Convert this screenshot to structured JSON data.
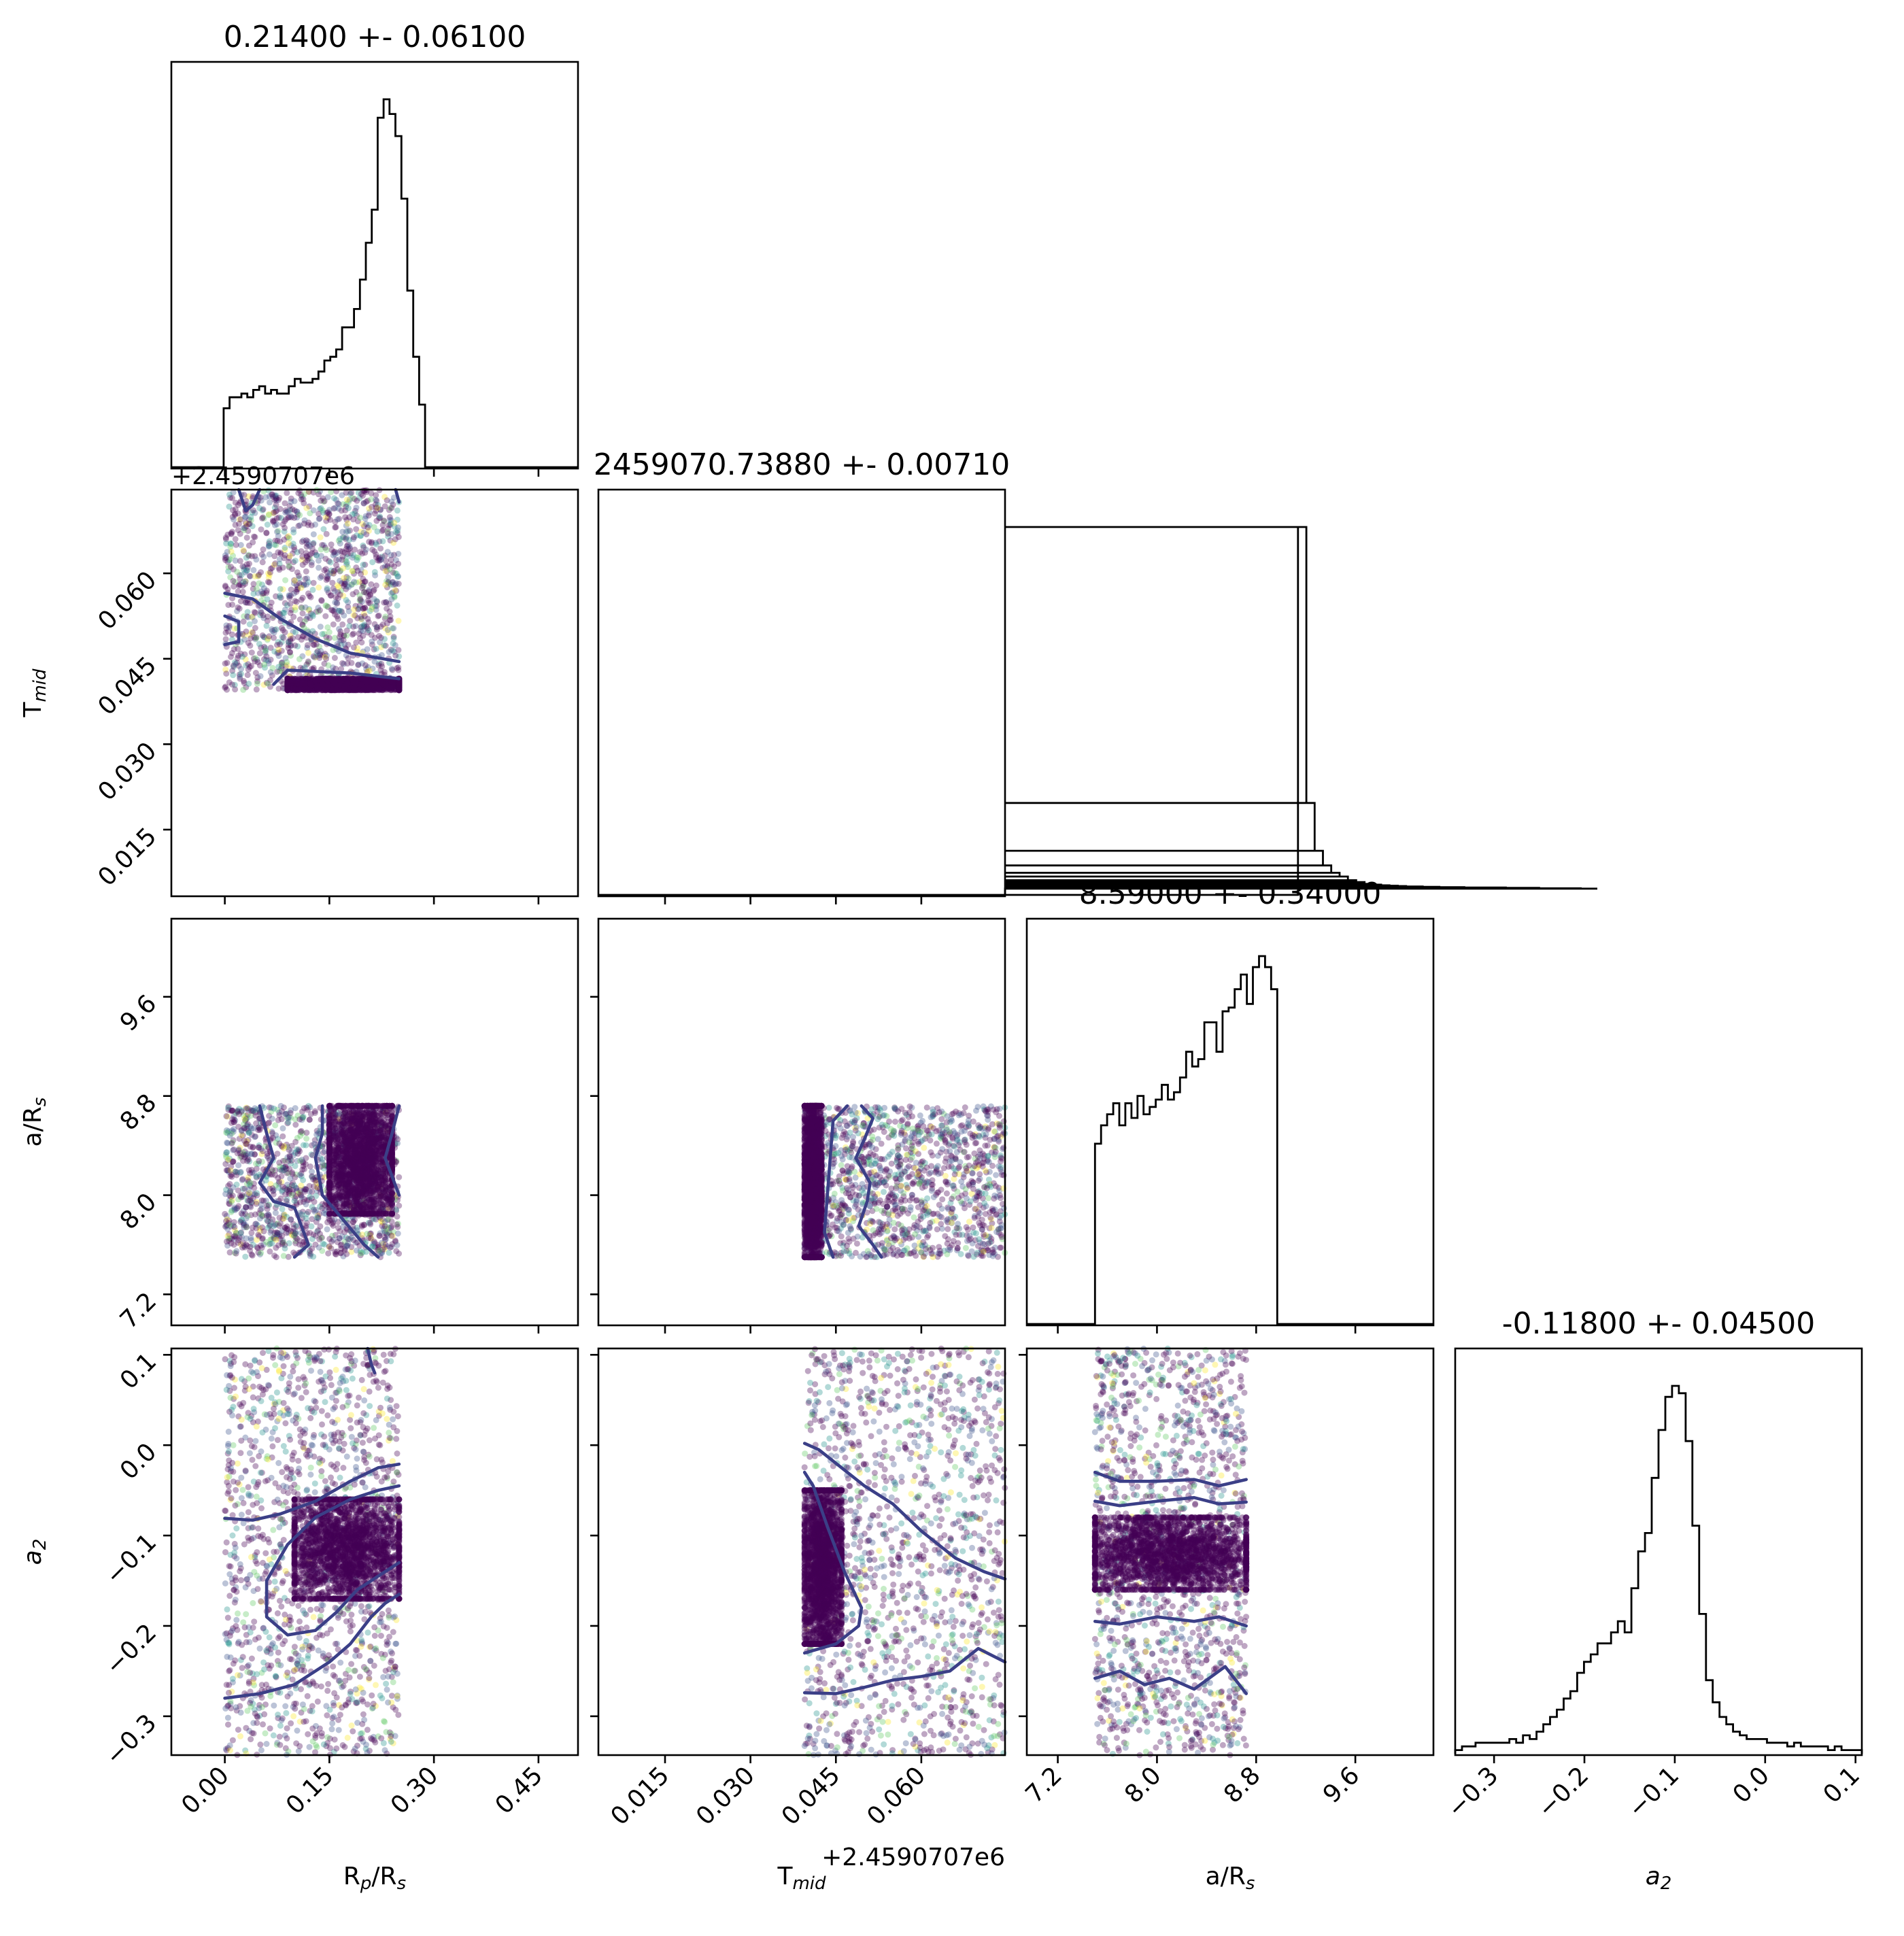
{
  "chart_data": {
    "type": "corner",
    "colormap": [
      "#440154",
      "#3b528b",
      "#21918c",
      "#5ec962",
      "#fde725"
    ],
    "contour_color": "#3b3f87",
    "parameters": [
      {
        "key": "rp",
        "label_main": "R",
        "label_sub": "p",
        "label_tail": "/R",
        "label_tail_sub": "s",
        "range": [
          -0.0767,
          0.5067
        ],
        "ticks": [
          0.0,
          0.15,
          0.3,
          0.45
        ],
        "tick_labels": [
          "0.00",
          "0.15",
          "0.30",
          "0.45"
        ],
        "offset": "",
        "title": "0.21400 +- 0.06100"
      },
      {
        "key": "tmid",
        "label_main": "T",
        "label_sub": "mid",
        "label_tail": "",
        "label_tail_sub": "",
        "range": [
          0.0033,
          0.0747
        ],
        "ticks": [
          0.015,
          0.03,
          0.045,
          0.06
        ],
        "tick_labels": [
          "0.015",
          "0.030",
          "0.045",
          "0.060"
        ],
        "offset": "+2.4590707e6",
        "title": "2459070.73880 +- 0.00710"
      },
      {
        "key": "ars",
        "label_main": "a/R",
        "label_sub": "s",
        "label_tail": "",
        "label_tail_sub": "",
        "range": [
          6.95,
          10.23
        ],
        "ticks": [
          7.2,
          8.0,
          8.8,
          9.6
        ],
        "tick_labels": [
          "7.2",
          "8.0",
          "8.8",
          "9.6"
        ],
        "offset": "",
        "title": "8.59000 +- 0.34000"
      },
      {
        "key": "a2",
        "label_main": "a",
        "label_sub": "2",
        "label_tail": "",
        "label_tail_sub": "",
        "range": [
          -0.343,
          0.107
        ],
        "ticks": [
          -0.3,
          -0.2,
          -0.1,
          0.0,
          0.1
        ],
        "tick_labels": [
          "−0.3",
          "−0.2",
          "−0.1",
          "0.0",
          "0.1"
        ],
        "offset": "",
        "title": "-0.11800 +- 0.04500"
      }
    ],
    "histograms": [
      {
        "param": "rp",
        "bin_start": -0.0017,
        "bin_width": 0.0085,
        "counts": [
          0.16,
          0.19,
          0.19,
          0.2,
          0.19,
          0.21,
          0.22,
          0.2,
          0.21,
          0.2,
          0.2,
          0.22,
          0.24,
          0.23,
          0.23,
          0.24,
          0.26,
          0.29,
          0.3,
          0.32,
          0.38,
          0.38,
          0.43,
          0.51,
          0.61,
          0.7,
          0.95,
          1.0,
          0.96,
          0.9,
          0.73,
          0.48,
          0.3,
          0.17,
          0.0
        ]
      },
      {
        "param": "tmid",
        "bin_start": 0.0035,
        "bin_width": 0.00146,
        "counts": [
          0,
          0,
          0,
          0,
          0,
          0,
          0,
          0,
          0,
          0,
          0,
          0,
          0,
          0,
          0,
          0,
          0,
          0,
          0,
          0,
          0,
          0,
          0,
          0,
          0,
          0,
          0,
          0,
          0,
          0,
          0,
          0,
          0,
          0,
          0,
          0,
          0,
          0,
          0,
          0,
          0,
          0,
          0,
          0,
          0,
          0,
          0,
          0,
          0,
          0,
          0,
          0,
          0,
          0,
          0,
          0,
          0,
          0,
          0,
          0,
          0,
          0,
          0,
          0,
          0,
          0,
          0,
          0,
          0,
          0,
          0,
          0,
          0,
          0,
          0,
          0,
          0,
          0,
          0,
          0,
          0,
          0,
          0,
          0,
          1.0,
          0.25,
          0.12,
          0.08,
          0.06,
          0.05,
          0.04,
          0.035,
          0.03,
          0.028,
          0.026,
          0.025,
          0.024,
          0.023,
          0.023,
          0.022,
          0.022,
          0.021,
          0.021,
          0.021,
          0.02,
          0.02,
          0.02,
          0.02,
          0.02,
          0.019,
          0.019,
          0.019,
          0.019,
          0.018,
          0.018,
          0.018,
          0.018,
          0.018,
          0.017,
          0.017,
          0.017
        ]
      },
      {
        "param": "ars",
        "bin_start": 7.5,
        "bin_width": 0.0245,
        "counts": [
          0.49,
          0.49,
          0.54,
          0.54,
          0.57,
          0.57,
          0.6,
          0.6,
          0.54,
          0.54,
          0.6,
          0.6,
          0.56,
          0.56,
          0.62,
          0.62,
          0.57,
          0.57,
          0.59,
          0.59,
          0.61,
          0.61,
          0.65,
          0.65,
          0.61,
          0.61,
          0.63,
          0.63,
          0.67,
          0.67,
          0.74,
          0.74,
          0.7,
          0.7,
          0.72,
          0.72,
          0.82,
          0.82,
          0.82,
          0.82,
          0.74,
          0.74,
          0.85,
          0.85,
          0.86,
          0.86,
          0.91,
          0.91,
          0.95,
          0.95,
          0.87,
          0.87,
          0.97,
          0.97,
          1.0,
          1.0,
          0.97,
          0.97,
          0.91,
          0.91,
          0.0
        ]
      },
      {
        "param": "a2",
        "bin_start": -0.343,
        "bin_width": 0.0075,
        "counts": [
          0.01,
          0.02,
          0.02,
          0.03,
          0.03,
          0.03,
          0.03,
          0.03,
          0.04,
          0.03,
          0.05,
          0.04,
          0.06,
          0.08,
          0.1,
          0.12,
          0.15,
          0.17,
          0.22,
          0.25,
          0.27,
          0.3,
          0.3,
          0.33,
          0.36,
          0.33,
          0.45,
          0.55,
          0.6,
          0.75,
          0.88,
          0.97,
          1.0,
          0.98,
          0.85,
          0.62,
          0.38,
          0.2,
          0.14,
          0.1,
          0.08,
          0.06,
          0.05,
          0.04,
          0.04,
          0.04,
          0.03,
          0.03,
          0.03,
          0.02,
          0.03,
          0.02,
          0.02,
          0.02,
          0.02,
          0.01,
          0.02,
          0.01,
          0.01,
          0.01
        ]
      }
    ],
    "scatter_panels": [
      {
        "x": "rp",
        "y": "tmid",
        "point_box": {
          "x": [
            0.0,
            0.25
          ],
          "y": [
            0.0395,
            0.0747
          ]
        },
        "dense_core": {
          "x": [
            0.09,
            0.25
          ],
          "y": [
            0.0395,
            0.0415
          ]
        },
        "contours": [
          [
            [
              0.0,
              0.0565
            ],
            [
              0.04,
              0.0555
            ],
            [
              0.08,
              0.052
            ],
            [
              0.13,
              0.0485
            ],
            [
              0.18,
              0.046
            ],
            [
              0.25,
              0.0445
            ]
          ],
          [
            [
              0.0,
              0.0525
            ],
            [
              0.02,
              0.0515
            ],
            [
              0.02,
              0.048
            ],
            [
              0.0,
              0.0475
            ]
          ],
          [
            [
              0.07,
              0.0405
            ],
            [
              0.09,
              0.043
            ],
            [
              0.18,
              0.0425
            ],
            [
              0.25,
              0.0415
            ]
          ],
          [
            [
              0.02,
              0.0747
            ],
            [
              0.03,
              0.071
            ],
            [
              0.04,
              0.072
            ],
            [
              0.05,
              0.0747
            ]
          ],
          [
            [
              0.245,
              0.0747
            ],
            [
              0.25,
              0.0725
            ]
          ]
        ]
      },
      {
        "x": "rp",
        "y": "ars",
        "point_box": {
          "x": [
            0.0,
            0.25
          ],
          "y": [
            7.5,
            8.72
          ]
        },
        "dense_core": {
          "x": [
            0.15,
            0.24
          ],
          "y": [
            7.85,
            8.72
          ]
        },
        "contours": [
          [
            [
              0.05,
              8.72
            ],
            [
              0.06,
              8.5
            ],
            [
              0.07,
              8.3
            ],
            [
              0.05,
              8.1
            ],
            [
              0.07,
              7.95
            ],
            [
              0.1,
              7.9
            ],
            [
              0.12,
              7.6
            ],
            [
              0.1,
              7.5
            ]
          ],
          [
            [
              0.14,
              8.72
            ],
            [
              0.14,
              8.5
            ],
            [
              0.13,
              8.3
            ],
            [
              0.14,
              8.0
            ],
            [
              0.17,
              7.8
            ],
            [
              0.2,
              7.6
            ],
            [
              0.22,
              7.5
            ]
          ],
          [
            [
              0.25,
              8.72
            ],
            [
              0.24,
              8.5
            ],
            [
              0.23,
              8.3
            ],
            [
              0.25,
              8.0
            ]
          ]
        ]
      },
      {
        "x": "rp",
        "y": "a2",
        "point_box": {
          "x": [
            0.0,
            0.25
          ],
          "y": [
            -0.343,
            0.107
          ]
        },
        "dense_core": {
          "x": [
            0.1,
            0.25
          ],
          "y": [
            -0.17,
            -0.06
          ]
        },
        "contours": [
          [
            [
              0.0,
              -0.081
            ],
            [
              0.04,
              -0.083
            ],
            [
              0.08,
              -0.076
            ],
            [
              0.13,
              -0.062
            ],
            [
              0.18,
              -0.04
            ],
            [
              0.22,
              -0.025
            ],
            [
              0.25,
              -0.021
            ]
          ],
          [
            [
              0.25,
              -0.045
            ],
            [
              0.22,
              -0.05
            ],
            [
              0.18,
              -0.06
            ],
            [
              0.13,
              -0.08
            ],
            [
              0.09,
              -0.11
            ],
            [
              0.06,
              -0.15
            ],
            [
              0.06,
              -0.19
            ],
            [
              0.09,
              -0.21
            ],
            [
              0.13,
              -0.205
            ],
            [
              0.16,
              -0.185
            ],
            [
              0.19,
              -0.16
            ],
            [
              0.23,
              -0.14
            ],
            [
              0.25,
              -0.13
            ]
          ],
          [
            [
              0.0,
              -0.28
            ],
            [
              0.05,
              -0.275
            ],
            [
              0.1,
              -0.265
            ],
            [
              0.15,
              -0.24
            ],
            [
              0.18,
              -0.22
            ],
            [
              0.21,
              -0.19
            ],
            [
              0.23,
              -0.175
            ],
            [
              0.25,
              -0.165
            ]
          ],
          [
            [
              0.205,
              0.107
            ],
            [
              0.21,
              0.09
            ],
            [
              0.215,
              0.08
            ]
          ]
        ]
      },
      {
        "x": "tmid",
        "y": "ars",
        "point_box": {
          "x": [
            0.0395,
            0.0747
          ],
          "y": [
            7.5,
            8.72
          ]
        },
        "dense_core": {
          "x": [
            0.0395,
            0.0425
          ],
          "y": [
            7.5,
            8.72
          ]
        },
        "contours": [
          [
            [
              0.047,
              8.72
            ],
            [
              0.0445,
              8.6
            ],
            [
              0.044,
              8.3
            ],
            [
              0.0435,
              8.0
            ],
            [
              0.043,
              7.7
            ],
            [
              0.0445,
              7.5
            ]
          ],
          [
            [
              0.0495,
              8.72
            ],
            [
              0.0515,
              8.62
            ],
            [
              0.05,
              8.45
            ],
            [
              0.0485,
              8.3
            ],
            [
              0.051,
              8.1
            ],
            [
              0.0505,
              7.95
            ],
            [
              0.049,
              7.75
            ],
            [
              0.0515,
              7.6
            ],
            [
              0.053,
              7.5
            ]
          ]
        ]
      },
      {
        "x": "tmid",
        "y": "a2",
        "point_box": {
          "x": [
            0.0395,
            0.0747
          ],
          "y": [
            -0.343,
            0.107
          ]
        },
        "dense_core": {
          "x": [
            0.0395,
            0.046
          ],
          "y": [
            -0.22,
            -0.05
          ]
        },
        "contours": [
          [
            [
              0.0395,
              0.002
            ],
            [
              0.042,
              -0.005
            ],
            [
              0.046,
              -0.025
            ],
            [
              0.05,
              -0.045
            ],
            [
              0.055,
              -0.065
            ],
            [
              0.06,
              -0.095
            ],
            [
              0.066,
              -0.125
            ],
            [
              0.071,
              -0.14
            ],
            [
              0.0747,
              -0.148
            ]
          ],
          [
            [
              0.0395,
              -0.03
            ],
            [
              0.041,
              -0.045
            ],
            [
              0.0435,
              -0.09
            ],
            [
              0.0465,
              -0.14
            ],
            [
              0.0495,
              -0.18
            ],
            [
              0.049,
              -0.2
            ],
            [
              0.045,
              -0.22
            ],
            [
              0.0395,
              -0.23
            ]
          ],
          [
            [
              0.0395,
              -0.274
            ],
            [
              0.045,
              -0.275
            ],
            [
              0.05,
              -0.268
            ],
            [
              0.055,
              -0.26
            ],
            [
              0.06,
              -0.256
            ],
            [
              0.065,
              -0.25
            ],
            [
              0.07,
              -0.225
            ],
            [
              0.0747,
              -0.24
            ]
          ]
        ]
      },
      {
        "x": "ars",
        "y": "a2",
        "point_box": {
          "x": [
            7.5,
            8.72
          ],
          "y": [
            -0.343,
            0.107
          ]
        },
        "dense_core": {
          "x": [
            7.5,
            8.72
          ],
          "y": [
            -0.16,
            -0.08
          ]
        },
        "contours": [
          [
            [
              7.5,
              -0.03
            ],
            [
              7.7,
              -0.04
            ],
            [
              8.0,
              -0.04
            ],
            [
              8.3,
              -0.038
            ],
            [
              8.5,
              -0.045
            ],
            [
              8.72,
              -0.038
            ]
          ],
          [
            [
              7.5,
              -0.062
            ],
            [
              7.7,
              -0.067
            ],
            [
              8.0,
              -0.062
            ],
            [
              8.3,
              -0.058
            ],
            [
              8.5,
              -0.065
            ],
            [
              8.72,
              -0.063
            ]
          ],
          [
            [
              7.5,
              -0.195
            ],
            [
              7.7,
              -0.198
            ],
            [
              8.0,
              -0.19
            ],
            [
              8.3,
              -0.195
            ],
            [
              8.5,
              -0.19
            ],
            [
              8.72,
              -0.2
            ]
          ],
          [
            [
              7.5,
              -0.258
            ],
            [
              7.7,
              -0.25
            ],
            [
              7.9,
              -0.265
            ],
            [
              8.1,
              -0.258
            ],
            [
              8.3,
              -0.27
            ],
            [
              8.55,
              -0.245
            ],
            [
              8.72,
              -0.275
            ]
          ]
        ]
      }
    ]
  }
}
